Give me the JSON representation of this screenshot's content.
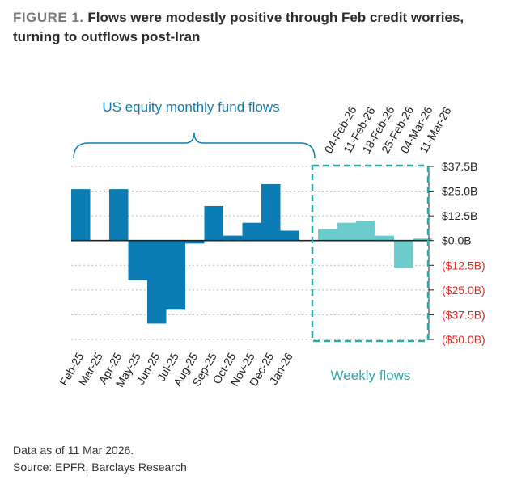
{
  "figure": {
    "label": "FIGURE 1.",
    "title": "Flows were modestly positive through Feb credit worries, turning to outflows post-Iran"
  },
  "colors": {
    "monthly": "#0b7db4",
    "weekly": "#6ccbcb",
    "weekly_label": "#2aa9a9",
    "negative_label": "#e0281c",
    "axis": "#222222",
    "grid": "#bbbbbb"
  },
  "chart_data": {
    "type": "bar",
    "units": "USD billions",
    "ylim": [
      -50,
      37.5
    ],
    "yticks": [
      37.5,
      25,
      12.5,
      0,
      -12.5,
      -25,
      -37.5,
      -50
    ],
    "ytick_labels": [
      "$37.5B",
      "$25.0B",
      "$12.5B",
      "$0.0B",
      "($12.5B)",
      "($25.0B)",
      "($37.5B)",
      "($50.0B)"
    ],
    "grid": "horizontal dotted",
    "series": [
      {
        "name": "US equity monthly fund flows",
        "categories": [
          "Feb-25",
          "Mar-25",
          "Apr-25",
          "May-25",
          "Jun-25",
          "Jul-25",
          "Aug-25",
          "Sep-25",
          "Oct-25",
          "Nov-25",
          "Dec-25",
          "Jan-26"
        ],
        "values": [
          26,
          0,
          26,
          -20,
          -42,
          -35,
          -1.5,
          17.5,
          2.5,
          9,
          28.5,
          5
        ]
      },
      {
        "name": "Weekly flows",
        "categories": [
          "04-Feb-26",
          "11-Feb-26",
          "18-Feb-26",
          "25-Feb-26",
          "04-Mar-26",
          "11-Mar-26"
        ],
        "values": [
          6,
          9,
          10,
          2.5,
          -14,
          1
        ]
      }
    ]
  },
  "footnote": {
    "data_as_of": "Data as of 11 Mar 2026.",
    "source": "Source: EPFR, Barclays Research"
  }
}
